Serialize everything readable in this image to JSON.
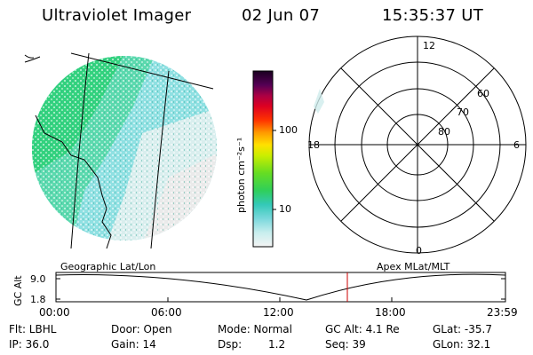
{
  "header": {
    "instrument": "Ultraviolet Imager",
    "date": "02 Jun 07",
    "time": "15:35:37 UT"
  },
  "colorbar": {
    "unit_label": "photon cm⁻²s⁻¹",
    "ticks": [
      "100",
      "10"
    ]
  },
  "polar_plot": {
    "mlt_labels": {
      "top": "12",
      "left": "18",
      "right": "6",
      "bottom": "0"
    },
    "lat_labels": [
      "60",
      "70",
      "80"
    ]
  },
  "timeline": {
    "ylabel": "GC Alt",
    "y_ticks": [
      "9.0",
      "1.8"
    ],
    "left_title": "Geographic Lat/Lon",
    "right_title": "Apex MLat/MLT",
    "x_ticks": [
      "00:00",
      "06:00",
      "12:00",
      "18:00",
      "23:59"
    ],
    "current_time_marker": "15:35",
    "marker_color": "#cc0000"
  },
  "footer": {
    "filter": "Flt: LBHL",
    "door": "Door: Open",
    "mode": "Mode: Normal",
    "gc_alt": "GC Alt: 4.1 Re",
    "glat": "GLat: -35.7",
    "ip": "IP: 36.0",
    "gain": "Gain: 14",
    "dsp_label": "Dsp:",
    "dsp_value": "1.2",
    "seq": "Seq: 39",
    "glon": "GLon: 32.1"
  }
}
